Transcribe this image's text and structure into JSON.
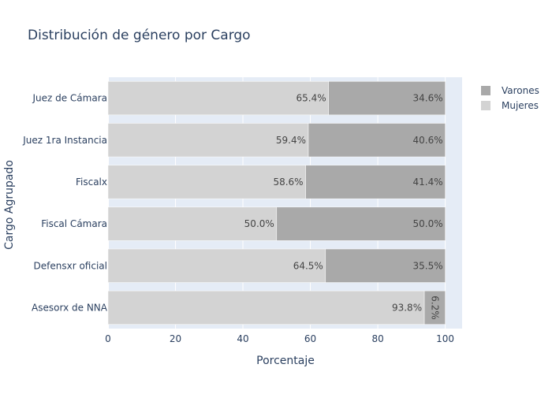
{
  "chart_data": {
    "type": "bar",
    "orientation": "horizontal",
    "barmode": "stack",
    "title": "Distribución de género por Cargo",
    "xlabel": "Porcentaje",
    "ylabel": "Cargo Agrupado",
    "xlim": [
      0,
      105
    ],
    "xticks": [
      0,
      20,
      40,
      60,
      80,
      100
    ],
    "grid": true,
    "legend_position": "top-right",
    "categories": [
      "Juez de Cámara",
      "Juez 1ra Instancia",
      "Fiscalx",
      "Fiscal Cámara",
      "Defensxr oficial",
      "Asesorx de NNA"
    ],
    "series": [
      {
        "name": "Mujeres",
        "color": "#d3d3d3",
        "values": [
          65.4,
          59.4,
          58.6,
          50.0,
          64.5,
          93.8
        ],
        "labels": [
          "65.4%",
          "59.4%",
          "58.6%",
          "50.0%",
          "64.5%",
          "93.8%"
        ]
      },
      {
        "name": "Varones",
        "color": "#a9a9a9",
        "values": [
          34.6,
          40.6,
          41.4,
          50.0,
          35.5,
          6.2
        ],
        "labels": [
          "34.6%",
          "40.6%",
          "41.4%",
          "50.0%",
          "35.5%",
          "6.2%"
        ]
      }
    ],
    "legend_order": [
      "Varones",
      "Mujeres"
    ],
    "plot_bg": "#e5ecf6"
  }
}
